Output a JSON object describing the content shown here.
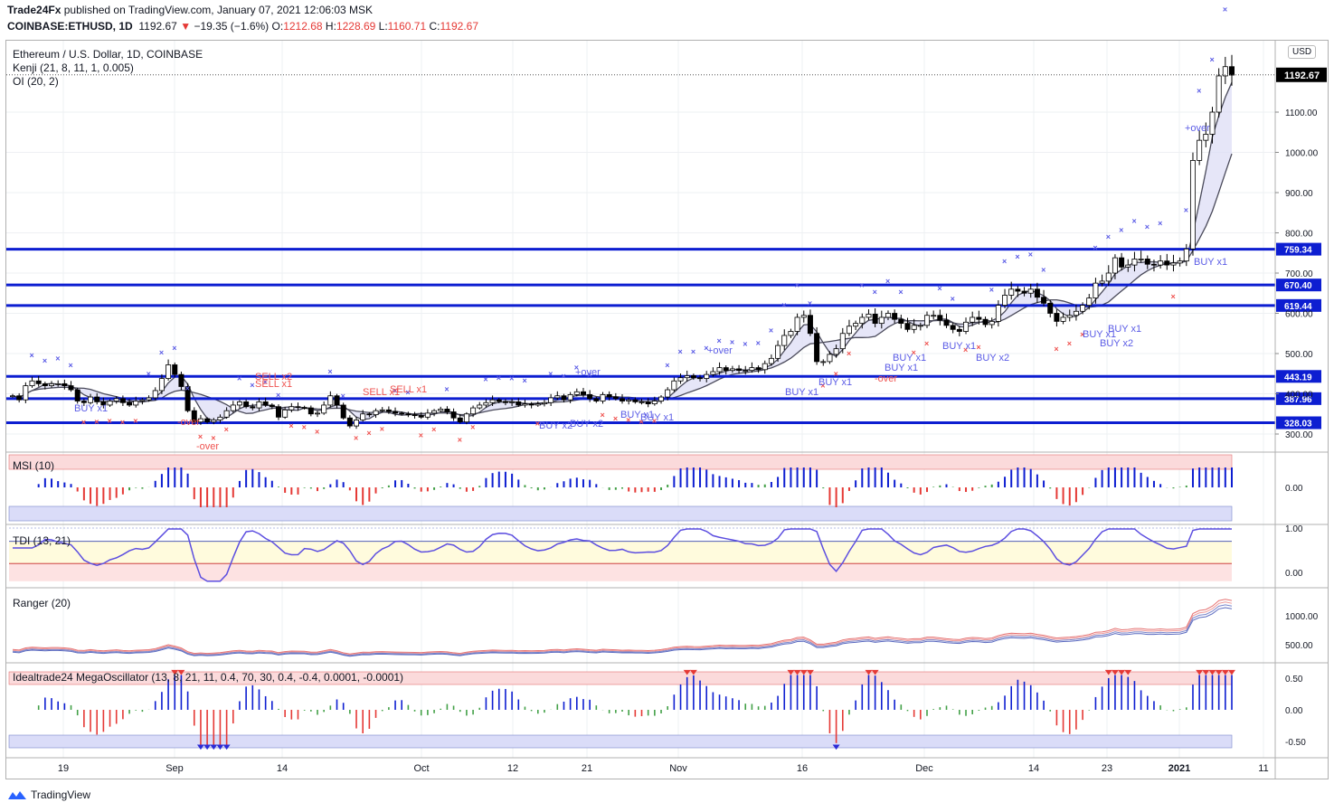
{
  "header": {
    "publisher": "Trade24Fx",
    "published_text": "published on TradingView.com, January 07, 2021 12:06:03 MSK",
    "symbol": "COINBASE:ETHUSD, 1D",
    "last": "1192.67",
    "change": "−19.35 (−1.6%)",
    "o_label": "O:",
    "o": "1212.68",
    "h_label": "H:",
    "h": "1228.69",
    "l_label": "L:",
    "l": "1160.71",
    "c_label": "C:",
    "c": "1192.67"
  },
  "main_pane": {
    "title": "Ethereum / U.S. Dollar, 1D, COINBASE",
    "indicator1": "Kenji (21, 8, 11, 1, 0.005)",
    "indicator2": "OI (20, 2)",
    "currency": "USD",
    "last_price_label": "1192.67"
  },
  "colors": {
    "blue": "#0d1ed1",
    "mark_blue": "#5b5ce6",
    "mark_red": "#ef5350",
    "up_candle": "#ffffff",
    "down_candle": "#000000",
    "band_fill": "#dcdcf5"
  },
  "chart_data": [
    {
      "type": "candlestick",
      "title": "Ethereum / U.S. Dollar, 1D, COINBASE",
      "x_ticks": [
        "19",
        "Sep",
        "14",
        "Oct",
        "12",
        "21",
        "Nov",
        "16",
        "Dec",
        "14",
        "23",
        "2021",
        "11"
      ],
      "y_ticks": [
        300,
        400,
        500,
        600,
        700,
        800,
        900,
        1000,
        1100
      ],
      "ylim": [
        280,
        1250
      ],
      "horizontal_levels": [
        {
          "label": "759.34",
          "value": 759.34
        },
        {
          "label": "670.40",
          "value": 670.4
        },
        {
          "label": "619.44",
          "value": 619.44
        },
        {
          "label": "443.19",
          "value": 443.19
        },
        {
          "label": "387.96",
          "value": 387.96
        },
        {
          "label": "328.03",
          "value": 328.03
        }
      ],
      "close": [
        395,
        385,
        420,
        432,
        425,
        420,
        425,
        425,
        420,
        410,
        382,
        378,
        392,
        380,
        372,
        382,
        388,
        378,
        372,
        382,
        385,
        390,
        408,
        438,
        472,
        448,
        418,
        358,
        330,
        338,
        330,
        335,
        342,
        358,
        372,
        380,
        368,
        365,
        380,
        372,
        368,
        342,
        360,
        368,
        366,
        365,
        350,
        352,
        372,
        395,
        372,
        340,
        320,
        335,
        350,
        348,
        358,
        360,
        356,
        352,
        350,
        348,
        346,
        342,
        352,
        358,
        362,
        355,
        340,
        330,
        350,
        365,
        372,
        378,
        385,
        381,
        378,
        380,
        372,
        375,
        372,
        375,
        378,
        390,
        395,
        385,
        398,
        405,
        398,
        388,
        382,
        398,
        392,
        388,
        382,
        385,
        380,
        380,
        375,
        382,
        392,
        410,
        432,
        440,
        445,
        440,
        438,
        448,
        455,
        465,
        458,
        462,
        458,
        458,
        465,
        460,
        475,
        488,
        520,
        545,
        555,
        590,
        595,
        550,
        480,
        480,
        498,
        512,
        550,
        568,
        575,
        590,
        598,
        575,
        590,
        600,
        585,
        575,
        560,
        570,
        570,
        595,
        595,
        583,
        570,
        560,
        555,
        578,
        590,
        585,
        572,
        580,
        620,
        645,
        660,
        655,
        650,
        660,
        640,
        625,
        600,
        580,
        590,
        595,
        605,
        620,
        638,
        675,
        680,
        700,
        738,
        715,
        720,
        735,
        735,
        722,
        720,
        730,
        720,
        725,
        730,
        760,
        980,
        1030,
        1045,
        1100,
        1190,
        1213,
        1192
      ],
      "last_price": 1192.67
    },
    {
      "type": "bar",
      "title": "MSI (10)",
      "y_ticks": [
        0.0
      ],
      "summary": "oscillator histogram around zero; blue positive, red negative"
    },
    {
      "type": "line",
      "title": "TDI (13, 21)",
      "y_ticks": [
        0.0,
        1.0
      ],
      "ylim": [
        -0.2,
        1.05
      ]
    },
    {
      "type": "line",
      "title": "Ranger (20)",
      "y_ticks": [
        500.0,
        1000.0
      ]
    },
    {
      "type": "bar",
      "title": "Idealtrade24 MegaOscillator (13, 8, 21, 11, 0.4, 70, 30, 0.4, -0.4, 0.0001, -0.0001)",
      "y_ticks": [
        0.5,
        0.0,
        -0.5
      ]
    }
  ],
  "annotations": {
    "buy_x1": "BUY x1",
    "buy_x2": "BUY x2",
    "sell_x1": "SELL x1",
    "sell_x2": "SELL x2",
    "over_plus": "+over",
    "over_minus": "-over"
  },
  "footer": {
    "brand": "TradingView",
    "icon": "tradingview-logo-icon"
  }
}
